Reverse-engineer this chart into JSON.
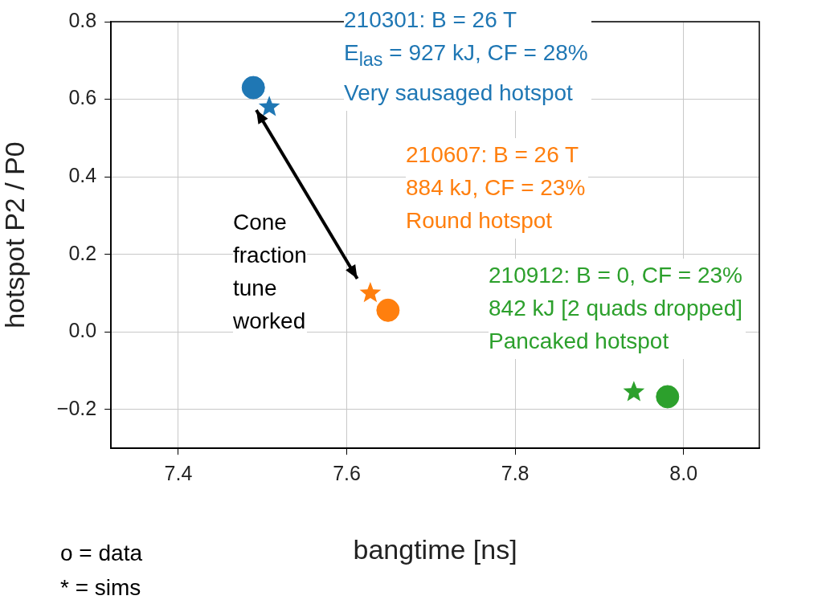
{
  "chart_data": {
    "type": "scatter",
    "xlabel": "bangtime [ns]",
    "ylabel": "hotspot P2 / P0",
    "xlim": [
      7.32,
      8.09
    ],
    "xticks": [
      7.4,
      7.6,
      7.8,
      {
        "value": 8,
        "label": "8.0"
      }
    ],
    "ylim": [
      -0.3,
      0.8
    ],
    "yticks": [
      -0.2,
      {
        "value": 0,
        "label": "0.0"
      },
      0.2,
      0.4,
      0.6,
      0.8
    ],
    "grid": true,
    "legend": false,
    "series": [
      {
        "color": "#1f77b4",
        "marker": "circle",
        "x": [
          7.489
        ],
        "values": [
          0.63
        ]
      },
      {
        "color": "#1f77b4",
        "marker": "star",
        "x": [
          7.508
        ],
        "values": [
          0.58
        ]
      },
      {
        "color": "#ff7f0e",
        "marker": "star",
        "x": [
          7.628
        ],
        "values": [
          0.1
        ]
      },
      {
        "color": "#ff7f0e",
        "marker": "circle",
        "x": [
          7.649
        ],
        "values": [
          0.056
        ]
      },
      {
        "color": "#2ca02c",
        "marker": "star",
        "x": [
          7.941
        ],
        "values": [
          -0.155
        ]
      },
      {
        "color": "#2ca02c",
        "marker": "circle",
        "x": [
          7.981
        ],
        "values": [
          -0.167
        ]
      }
    ],
    "annotations": [
      "210301: B = 26 T\nE$_{las}$ = 927 kJ, CF = 28%\nVery sausaged hotspot",
      "210607: B = 26 T\n884 kJ, CF = 23%\nRound hotspot",
      "210912: B = 0, CF = 23%\n842 kJ [2 quads dropped]\nPancaked hotspot",
      "Cone\nfraction\ntune\nworked",
      "o = data",
      "* = sims"
    ]
  }
}
